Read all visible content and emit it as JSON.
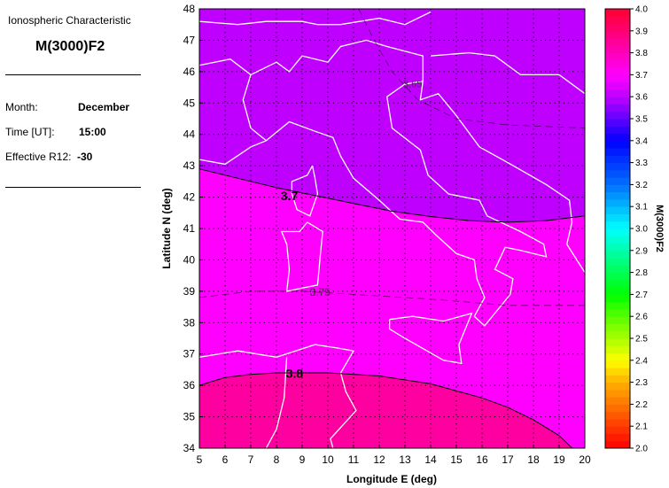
{
  "panel": {
    "subtitle": "Ionospheric Characteristic",
    "title": "M(3000)F2",
    "month_label": "Month:",
    "month_value": "December",
    "time_label": "Time [UT]:",
    "time_value": "15:00",
    "r12_label": "Effective R12:",
    "r12_value": "-30"
  },
  "chart_data": {
    "type": "heatmap",
    "xlabel": "Longitude E (deg)",
    "ylabel": "Latitude N (deg)",
    "xlim": [
      5,
      20
    ],
    "ylim": [
      34,
      48
    ],
    "x_ticks": [
      "5",
      "6",
      "7",
      "8",
      "9",
      "10",
      "11",
      "12",
      "13",
      "14",
      "15",
      "16",
      "17",
      "18",
      "19",
      "20"
    ],
    "y_ticks": [
      "34",
      "35",
      "36",
      "37",
      "38",
      "39",
      "40",
      "41",
      "42",
      "43",
      "44",
      "45",
      "46",
      "47",
      "48"
    ],
    "grid": true,
    "contours": [
      {
        "label": "3.65",
        "style": "dashed",
        "points": [
          [
            11.2,
            48
          ],
          [
            11.8,
            47
          ],
          [
            12.5,
            46
          ],
          [
            13.5,
            45.1
          ],
          [
            15,
            44.5
          ],
          [
            17,
            44.3
          ],
          [
            20,
            44.2
          ]
        ]
      },
      {
        "label": "3.7",
        "style": "solid",
        "points": [
          [
            5,
            42.9
          ],
          [
            6.5,
            42.6
          ],
          [
            8,
            42.3
          ],
          [
            9.5,
            42.05
          ],
          [
            11,
            41.8
          ],
          [
            12.5,
            41.55
          ],
          [
            14,
            41.38
          ],
          [
            15.5,
            41.25
          ],
          [
            17,
            41.2
          ],
          [
            18.5,
            41.25
          ],
          [
            20,
            41.4
          ]
        ]
      },
      {
        "label": "3.75",
        "style": "dashed",
        "points": [
          [
            5,
            38.8
          ],
          [
            7,
            39.0
          ],
          [
            9,
            39.0
          ],
          [
            11,
            38.9
          ],
          [
            14,
            38.75
          ],
          [
            17,
            38.55
          ],
          [
            20,
            38.55
          ]
        ]
      },
      {
        "label": "3.8",
        "style": "solid",
        "points": [
          [
            5,
            36.0
          ],
          [
            6,
            36.25
          ],
          [
            7,
            36.35
          ],
          [
            8,
            36.4
          ],
          [
            10,
            36.4
          ],
          [
            12,
            36.3
          ],
          [
            14,
            36.05
          ],
          [
            16,
            35.6
          ],
          [
            17,
            35.3
          ],
          [
            18,
            34.9
          ],
          [
            19,
            34.4
          ],
          [
            19.5,
            34.0
          ]
        ]
      }
    ],
    "region_colors": {
      "below_3.7": "#c000ff",
      "3.7_to_3.8": "#ff00ff",
      "above_3.8": "#ff00a0"
    },
    "colorbar": {
      "label": "M(3000)F2",
      "range": [
        2.0,
        4.0
      ],
      "ticks": [
        "2.0",
        "2.1",
        "2.2",
        "2.3",
        "2.4",
        "2.5",
        "2.6",
        "2.7",
        "2.8",
        "2.9",
        "3.0",
        "3.1",
        "3.2",
        "3.3",
        "3.4",
        "3.5",
        "3.6",
        "3.7",
        "3.8",
        "3.9",
        "4.0"
      ],
      "stops": [
        [
          2.0,
          "#ff0000"
        ],
        [
          2.3,
          "#ffb000"
        ],
        [
          2.4,
          "#ffff00"
        ],
        [
          2.7,
          "#00ff00"
        ],
        [
          3.0,
          "#00ffff"
        ],
        [
          3.2,
          "#0070ff"
        ],
        [
          3.4,
          "#0000ff"
        ],
        [
          3.6,
          "#c000ff"
        ],
        [
          3.7,
          "#ff00ff"
        ],
        [
          4.0,
          "#ff0030"
        ]
      ]
    }
  }
}
